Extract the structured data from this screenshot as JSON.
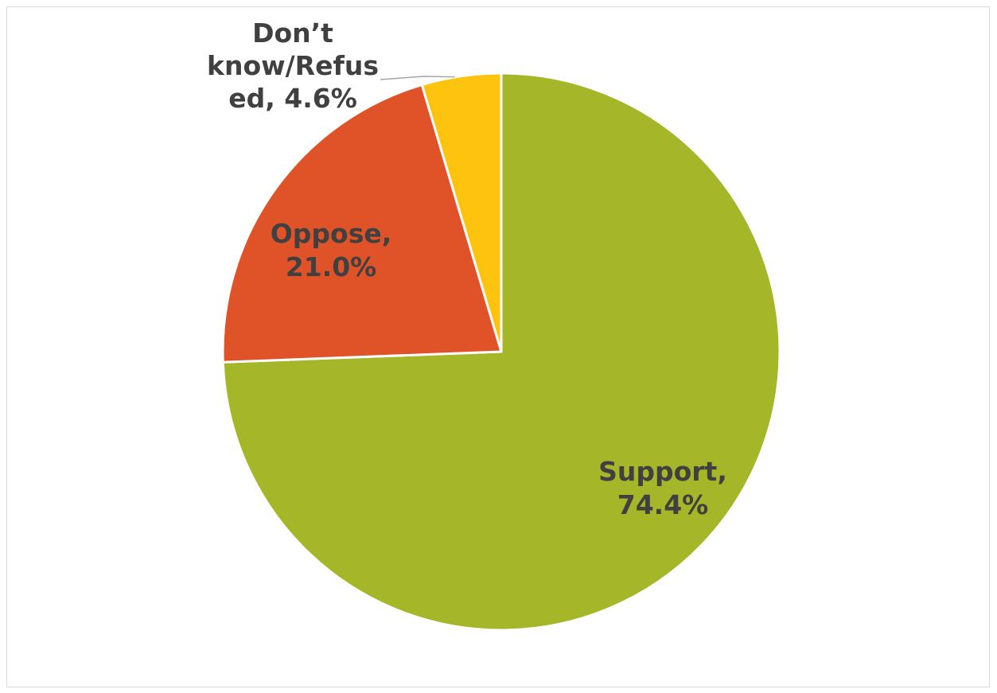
{
  "chart_data": {
    "type": "pie",
    "title": "",
    "slices": [
      {
        "label": "Support",
        "value": 74.4,
        "display": "74.4%",
        "color": "#a5b628"
      },
      {
        "label": "Oppose",
        "value": 21.0,
        "display": "21.0%",
        "color": "#e05328"
      },
      {
        "label": "Don’t know/Refused",
        "value": 4.6,
        "display": "4.6%",
        "color": "#fdc30e"
      }
    ],
    "data_labels": [
      {
        "lines": [
          "Support,",
          "74.4%"
        ]
      },
      {
        "lines": [
          "Oppose,",
          "21.0%"
        ]
      },
      {
        "lines": [
          "Don’t",
          "know/Refus",
          "ed, 4.6%"
        ]
      }
    ],
    "start_angle": "12 o'clock",
    "direction": "clockwise",
    "legend": "none"
  }
}
